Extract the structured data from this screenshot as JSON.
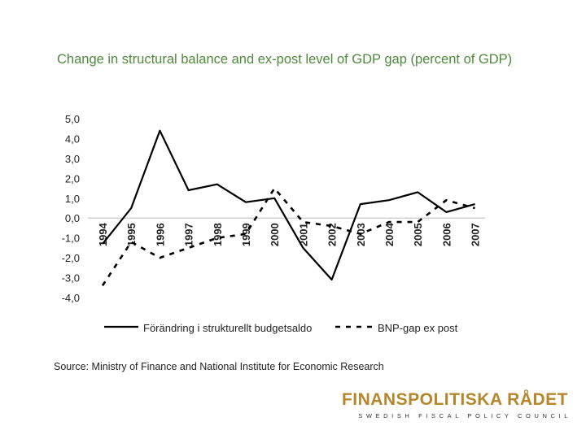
{
  "title": "Change in structural balance and ex-post level of GDP gap (percent of GDP)",
  "source": "Source: Ministry of Finance and National Institute for Economic Research",
  "logo": {
    "name": "FINANSPOLITISKA RÅDET",
    "subtitle": "SWEDISH FISCAL POLICY COUNCIL"
  },
  "colors": {
    "title": "#4e8a3c",
    "line": "#000000",
    "brand": "#b5862a"
  },
  "chart_data": {
    "type": "line",
    "categories": [
      "1994",
      "1995",
      "1996",
      "1997",
      "1998",
      "1999",
      "2000",
      "2001",
      "2002",
      "2003",
      "2004",
      "2005",
      "2006",
      "2007"
    ],
    "series": [
      {
        "name": "Förändring i strukturellt budgetsaldo",
        "style": "solid",
        "values": [
          -1.3,
          0.5,
          4.4,
          1.4,
          1.7,
          0.8,
          1.0,
          -1.5,
          -3.1,
          0.7,
          0.9,
          1.3,
          0.3,
          0.7
        ]
      },
      {
        "name": "BNP-gap ex post",
        "style": "dashed",
        "values": [
          -3.4,
          -1.2,
          -2.0,
          -1.5,
          -1.0,
          -0.8,
          1.5,
          -0.2,
          -0.4,
          -0.8,
          -0.2,
          -0.2,
          0.9,
          0.5
        ]
      }
    ],
    "yticks": [
      "5,0",
      "4,0",
      "3,0",
      "2,0",
      "1,0",
      "0,0",
      "-1,0",
      "-2,0",
      "-3,0",
      "-4,0"
    ],
    "ylim": [
      -4,
      5
    ],
    "xlabel": "",
    "ylabel": "",
    "legend_position": "bottom"
  }
}
